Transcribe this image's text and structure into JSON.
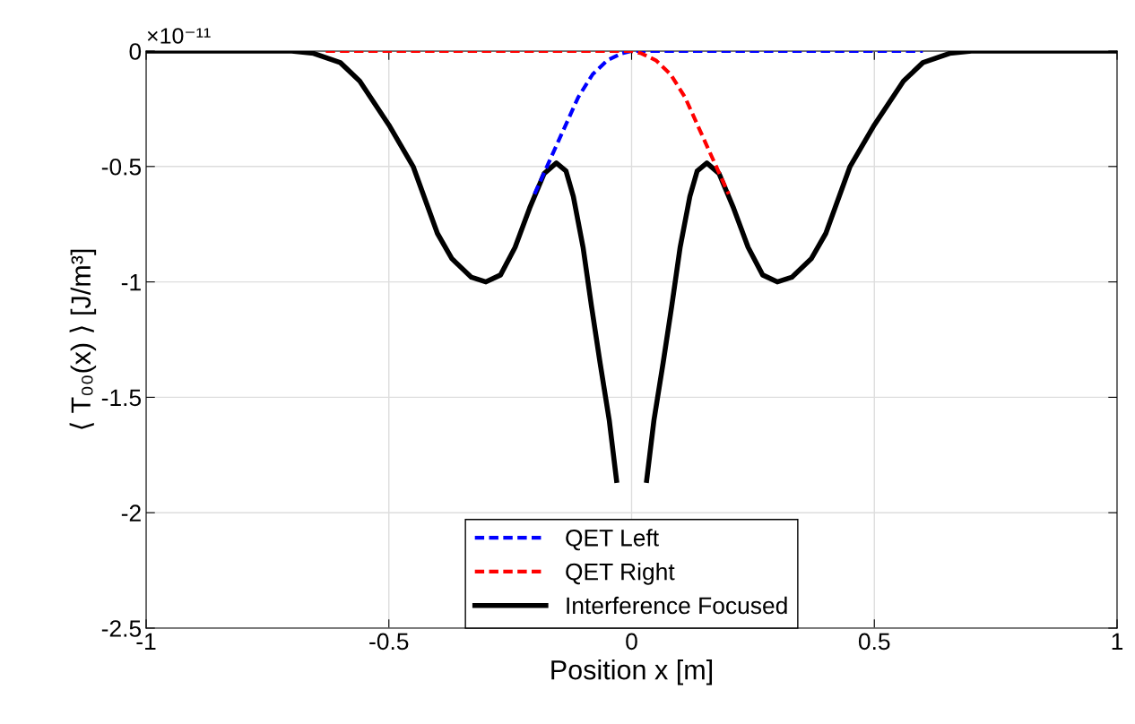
{
  "chart_data": {
    "type": "line",
    "xlabel": "Position x [m]",
    "ylabel": "⟨ T₀₀(x) ⟩ [J/m³]",
    "annotations": [
      "×10⁻¹¹"
    ],
    "xlim": [
      -1,
      1
    ],
    "xticks": [
      -1,
      -0.5,
      0,
      0.5,
      1
    ],
    "ylim": [
      -2.5,
      0
    ],
    "yticks": [
      -2.5,
      -2,
      -1.5,
      -1,
      -0.5,
      0
    ],
    "grid": true,
    "legend": "bottom",
    "line_style": "solid",
    "marker": "none",
    "series": [
      {
        "name": "QET Left",
        "color": "#0000ff",
        "line_style": "dashed",
        "x": [
          -0.2,
          -0.17,
          -0.14,
          -0.11,
          -0.08,
          -0.05,
          -0.02,
          0,
          0.3,
          0.6
        ],
        "values": [
          -0.62,
          -0.48,
          -0.34,
          -0.2,
          -0.1,
          -0.04,
          -0.01,
          0,
          0,
          0
        ]
      },
      {
        "name": "QET Right",
        "color": "#ff0000",
        "line_style": "dashed",
        "x": [
          -0.63,
          -0.3,
          0,
          0.02,
          0.05,
          0.08,
          0.11,
          0.14,
          0.17,
          0.2
        ],
        "values": [
          0,
          0,
          0,
          -0.01,
          -0.04,
          -0.1,
          -0.2,
          -0.34,
          -0.48,
          -0.62
        ]
      },
      {
        "name": "Interference Focused",
        "color": "#000000",
        "x": [
          -1,
          -0.7,
          -0.655,
          -0.6,
          -0.56,
          -0.5,
          -0.45,
          -0.4,
          -0.37,
          -0.33,
          -0.3,
          -0.27,
          -0.24,
          -0.21,
          -0.18,
          -0.155,
          -0.135,
          -0.12,
          -0.1,
          -0.083,
          -0.065,
          -0.046,
          -0.031,
          0,
          0.031,
          0.046,
          0.065,
          0.083,
          0.1,
          0.12,
          0.135,
          0.155,
          0.18,
          0.21,
          0.24,
          0.27,
          0.3,
          0.33,
          0.37,
          0.4,
          0.45,
          0.5,
          0.56,
          0.6,
          0.655,
          0.7,
          1
        ],
        "values": [
          0,
          0,
          -0.01,
          -0.05,
          -0.13,
          -0.32,
          -0.5,
          -0.79,
          -0.9,
          -0.98,
          -1.0,
          -0.97,
          -0.85,
          -0.68,
          -0.53,
          -0.485,
          -0.52,
          -0.63,
          -0.85,
          -1.1,
          -1.35,
          -1.6,
          -1.86,
          null,
          -1.86,
          -1.6,
          -1.35,
          -1.1,
          -0.85,
          -0.63,
          -0.52,
          -0.485,
          -0.53,
          -0.68,
          -0.85,
          -0.97,
          -1.0,
          -0.98,
          -0.9,
          -0.79,
          -0.5,
          -0.32,
          -0.13,
          -0.05,
          -0.01,
          0,
          0
        ]
      }
    ]
  }
}
